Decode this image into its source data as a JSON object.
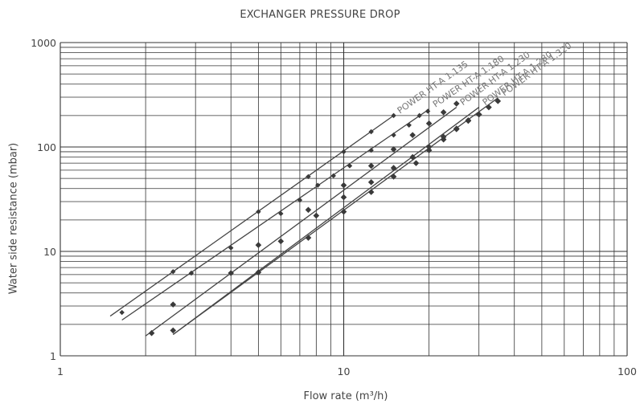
{
  "chart_data": {
    "type": "line",
    "title": "EXCHANGER PRESSURE DROP",
    "xlabel": "Flow rate (m³/h)",
    "ylabel": "Water side resistance (mbar)",
    "xscale": "log",
    "yscale": "log",
    "xlim": [
      1,
      100
    ],
    "ylim": [
      1,
      1000
    ],
    "x_ticks": [
      "1",
      "10",
      "100"
    ],
    "y_ticks": [
      "1",
      "10",
      "100",
      "1000"
    ],
    "grid": true,
    "colors": {
      "line": "#444444",
      "marker": "#3a3a3a",
      "grid": "#333333"
    },
    "series": [
      {
        "name": "POWER HT-A 1.135",
        "line": [
          [
            1.5,
            2.4
          ],
          [
            15,
            200
          ]
        ],
        "points": [
          [
            1.65,
            2.6
          ],
          [
            2.5,
            6.4
          ],
          [
            5,
            24
          ],
          [
            7.5,
            52
          ],
          [
            10,
            90
          ],
          [
            12.5,
            140
          ],
          [
            15,
            200
          ]
        ]
      },
      {
        "name": "POWER HT-A 1.180",
        "line": [
          [
            1.65,
            2.2
          ],
          [
            20,
            230
          ]
        ],
        "points": [
          [
            2.9,
            6.2
          ],
          [
            4,
            10.8
          ],
          [
            6,
            23
          ],
          [
            7,
            31
          ],
          [
            8.1,
            43
          ],
          [
            9.2,
            53
          ],
          [
            10.5,
            66
          ],
          [
            12.5,
            93
          ],
          [
            15,
            130
          ],
          [
            17,
            162
          ],
          [
            18.5,
            200
          ],
          [
            19.8,
            220
          ]
        ]
      },
      {
        "name": "POWER HT-A 1.230",
        "line": [
          [
            2,
            1.55
          ],
          [
            25,
            240
          ]
        ],
        "points": [
          [
            2.1,
            1.65
          ],
          [
            2.5,
            3.1
          ],
          [
            5,
            11.5
          ],
          [
            7.5,
            25
          ],
          [
            10,
            43
          ],
          [
            12.5,
            66
          ],
          [
            15,
            95
          ],
          [
            17.5,
            130
          ],
          [
            20,
            168
          ],
          [
            22.5,
            215
          ],
          [
            25,
            260
          ]
        ]
      },
      {
        "name": "POWER HT-A 1.280",
        "line": [
          [
            2.5,
            1.6
          ],
          [
            30,
            240
          ]
        ],
        "points": [
          [
            2.5,
            1.75
          ],
          [
            4,
            6.2
          ],
          [
            6,
            12.5
          ],
          [
            8,
            22
          ],
          [
            10,
            33
          ],
          [
            12.5,
            46
          ],
          [
            15,
            63
          ],
          [
            17.5,
            80
          ],
          [
            20,
            100
          ],
          [
            22.5,
            125
          ],
          [
            25,
            150
          ],
          [
            27.5,
            180
          ],
          [
            30,
            205
          ]
        ]
      },
      {
        "name": "POWER HT-A 1.320",
        "line": [
          [
            2.5,
            1.6
          ],
          [
            35,
            295
          ]
        ],
        "points": [
          [
            5,
            6.3
          ],
          [
            7.5,
            13.5
          ],
          [
            10,
            24
          ],
          [
            12.5,
            37
          ],
          [
            15,
            52
          ],
          [
            18,
            70
          ],
          [
            20,
            93
          ],
          [
            22.5,
            118
          ],
          [
            25,
            148
          ],
          [
            27.5,
            178
          ],
          [
            30,
            205
          ],
          [
            32.5,
            240
          ],
          [
            35,
            275
          ]
        ]
      }
    ]
  }
}
